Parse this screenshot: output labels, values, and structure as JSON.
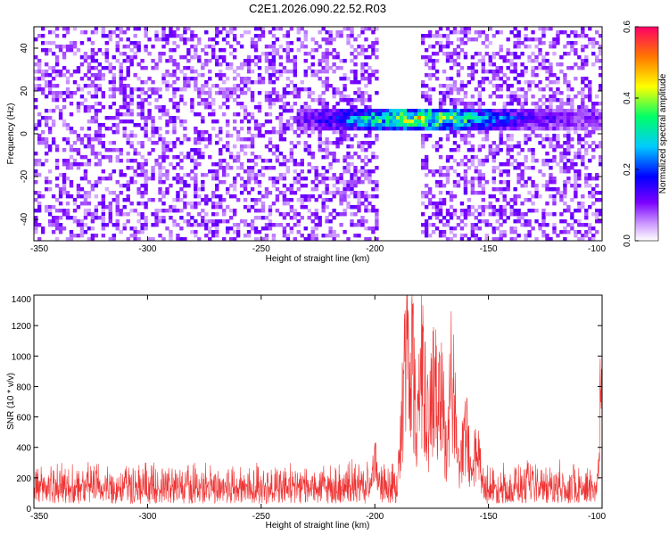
{
  "title": "C2E1.2026.090.22.52.R03",
  "colors": {
    "snr_line": "#ee3333",
    "frame": "#000000",
    "colormap": [
      "#ffffff",
      "#7a00ff",
      "#0000ff",
      "#00ccff",
      "#00ff66",
      "#ffff00",
      "#ff7700",
      "#ff0066"
    ]
  },
  "chart_data": [
    {
      "type": "heatmap",
      "title": "C2E1.2026.090.22.52.R03",
      "xlabel": "Height of straight line (km)",
      "ylabel": "Frequency (Hz)",
      "xlim": [
        -350,
        -100
      ],
      "ylim": [
        -50,
        50
      ],
      "xticks": [
        -350,
        -300,
        -250,
        -200,
        -150,
        -100
      ],
      "xtick_labels": [
        "-350",
        "-300",
        "-250",
        "-200",
        "-150",
        "-100"
      ],
      "yticks": [
        -40,
        -20,
        0,
        20,
        40
      ],
      "ytick_labels": [
        "-40",
        "-20",
        "0",
        "20",
        "40"
      ],
      "colorbar": {
        "label": "Normalized spectral amplitude",
        "range": [
          0.0,
          0.6
        ],
        "ticks": [
          0.0,
          0.2,
          0.4,
          0.6
        ],
        "tick_labels": [
          "0.0",
          "0.2",
          "0.4",
          "0.6"
        ]
      },
      "features": {
        "signal_band": {
          "x_range": [
            -235,
            -95
          ],
          "frequency_center": 7,
          "frequency_halfwidth": 5,
          "peak_x": -180,
          "peak_amplitude": 0.5
        },
        "gap": {
          "x_range": [
            -198,
            -180
          ],
          "frequency_range": [
            -50,
            50
          ]
        },
        "noise_amplitude": 0.08
      }
    },
    {
      "type": "line",
      "xlabel": "Height of straight line (km)",
      "ylabel": "SNR (10 * v/v)",
      "xlim": [
        -350,
        -100
      ],
      "ylim": [
        0,
        1400
      ],
      "xticks": [
        -350,
        -300,
        -250,
        -200,
        -150,
        -100
      ],
      "xtick_labels": [
        "-350",
        "-300",
        "-250",
        "-200",
        "-150",
        "-100"
      ],
      "yticks": [
        0,
        200,
        400,
        600,
        800,
        1000,
        1200,
        1400
      ],
      "ytick_labels": [
        "0",
        "200",
        "400",
        "600",
        "800",
        "1000",
        "1200",
        "1400"
      ],
      "series": [
        {
          "color": "#ee3333",
          "baseline": 150,
          "noise_range": [
            30,
            330
          ],
          "peaks": [
            {
              "x": -186,
              "y": 1400
            },
            {
              "x": -184,
              "y": 1220
            },
            {
              "x": -179,
              "y": 1000
            },
            {
              "x": -166,
              "y": 1040
            },
            {
              "x": -174,
              "y": 800
            },
            {
              "x": -171,
              "y": 760
            },
            {
              "x": -160,
              "y": 650
            },
            {
              "x": -155,
              "y": 560
            },
            {
              "x": -200,
              "y": 460
            },
            {
              "x": -100.5,
              "y": 1000
            }
          ]
        }
      ]
    }
  ]
}
